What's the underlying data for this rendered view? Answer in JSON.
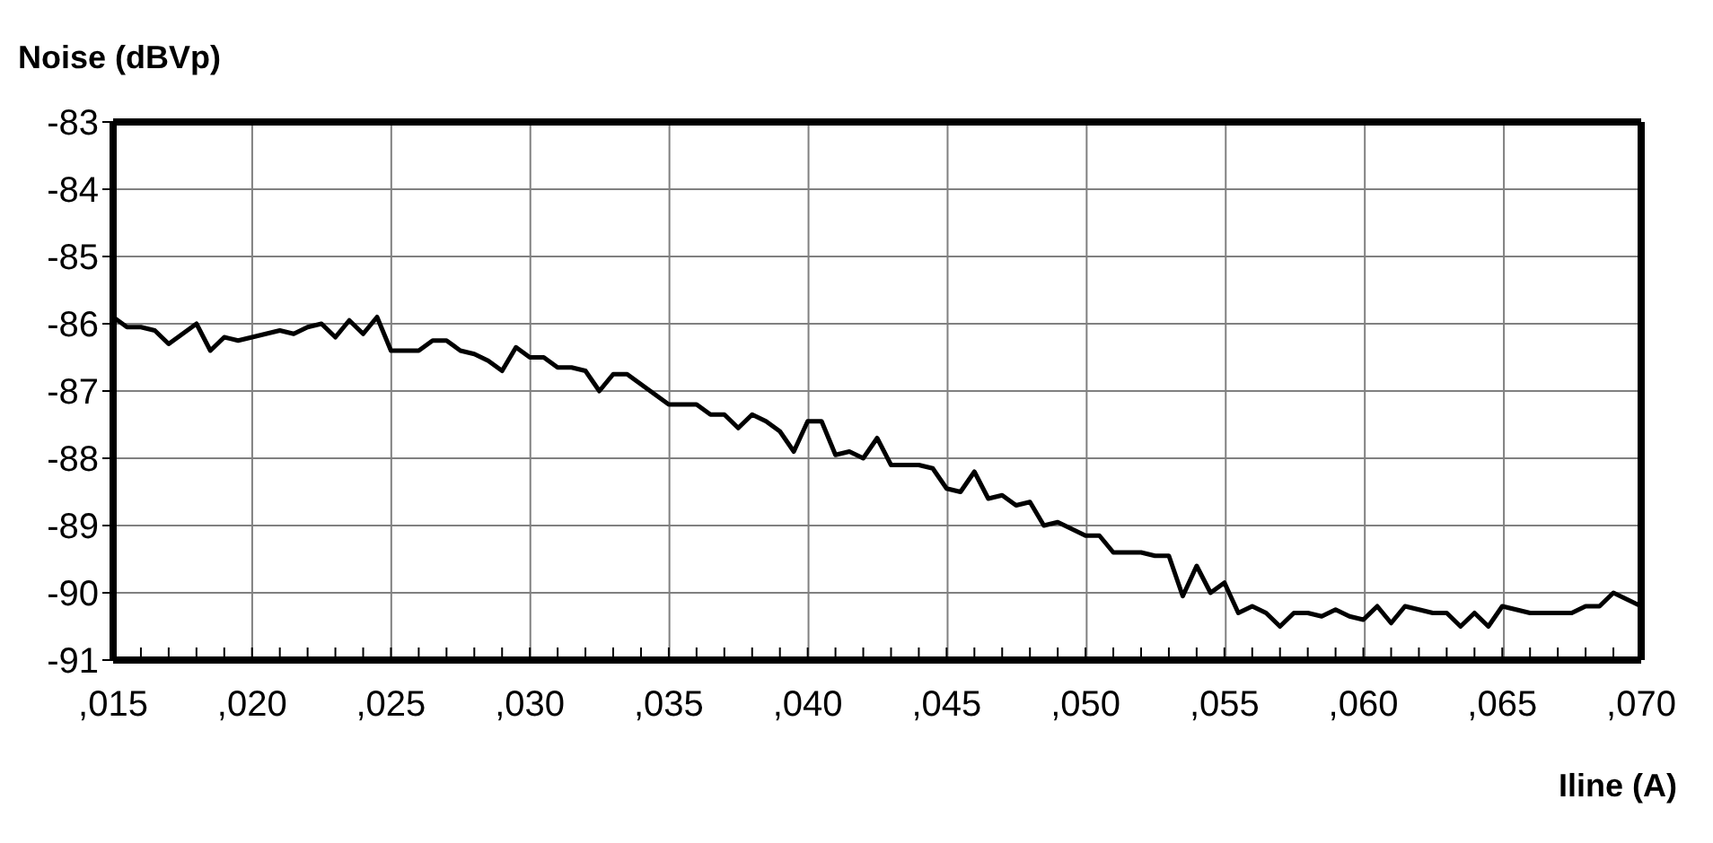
{
  "chart_data": {
    "type": "line",
    "xlabel": "Iline (A)",
    "ylabel": "Noise (dBVp)",
    "categories": [
      ",015",
      null,
      null,
      null,
      null,
      null,
      null,
      null,
      null,
      null,
      ",020",
      null,
      null,
      null,
      null,
      null,
      null,
      null,
      null,
      null,
      ",025",
      null,
      null,
      null,
      null,
      null,
      null,
      null,
      null,
      null,
      ",030",
      null,
      null,
      null,
      null,
      null,
      null,
      null,
      null,
      null,
      ",035",
      null,
      null,
      null,
      null,
      null,
      null,
      null,
      null,
      null,
      ",040",
      null,
      null,
      null,
      null,
      null,
      null,
      null,
      null,
      null,
      ",045",
      null,
      null,
      null,
      null,
      null,
      null,
      null,
      null,
      null,
      ",050",
      null,
      null,
      null,
      null,
      null,
      null,
      null,
      null,
      null,
      ",055",
      null,
      null,
      null,
      null,
      null,
      null,
      null,
      null,
      null,
      ",060",
      null,
      null,
      null,
      null,
      null,
      null,
      null,
      null,
      null,
      ",065",
      null,
      null,
      null,
      null,
      null,
      null,
      null,
      null,
      null,
      ",070"
    ],
    "values": [
      -85.9,
      -86.05,
      -86.05,
      -86.1,
      -86.3,
      -86.15,
      -86.0,
      -86.4,
      -86.2,
      -86.25,
      -86.2,
      -86.15,
      -86.1,
      -86.15,
      -86.05,
      -86.0,
      -86.2,
      -85.95,
      -86.15,
      -85.9,
      -86.4,
      -86.4,
      -86.4,
      -86.25,
      -86.25,
      -86.4,
      -86.45,
      -86.55,
      -86.7,
      -86.35,
      -86.5,
      -86.5,
      -86.65,
      -86.65,
      -86.7,
      -87.0,
      -86.75,
      -86.75,
      -86.9,
      -87.05,
      -87.2,
      -87.2,
      -87.2,
      -87.35,
      -87.35,
      -87.55,
      -87.35,
      -87.45,
      -87.6,
      -87.9,
      -87.45,
      -87.45,
      -87.95,
      -87.9,
      -88.0,
      -87.7,
      -88.1,
      -88.1,
      -88.1,
      -88.15,
      -88.45,
      -88.5,
      -88.2,
      -88.6,
      -88.55,
      -88.7,
      -88.65,
      -89.0,
      -88.95,
      -89.05,
      -89.15,
      -89.15,
      -89.4,
      -89.4,
      -89.4,
      -89.45,
      -89.45,
      -90.05,
      -89.6,
      -90.0,
      -89.85,
      -90.3,
      -90.2,
      -90.3,
      -90.5,
      -90.3,
      -90.3,
      -90.35,
      -90.25,
      -90.35,
      -90.4,
      -90.2,
      -90.45,
      -90.2,
      -90.25,
      -90.3,
      -90.3,
      -90.5,
      -90.3,
      -90.5,
      -90.2,
      -90.25,
      -90.3,
      -90.3,
      -90.3,
      -90.3,
      -90.2,
      -90.2,
      -90.0,
      -90.1,
      -90.2
    ],
    "color": "#000000",
    "ylim": [
      -91,
      -83
    ],
    "yticks": [
      -91,
      -90,
      -89,
      -88,
      -87,
      -86,
      -85,
      -84,
      -83
    ],
    "grid": true
  }
}
